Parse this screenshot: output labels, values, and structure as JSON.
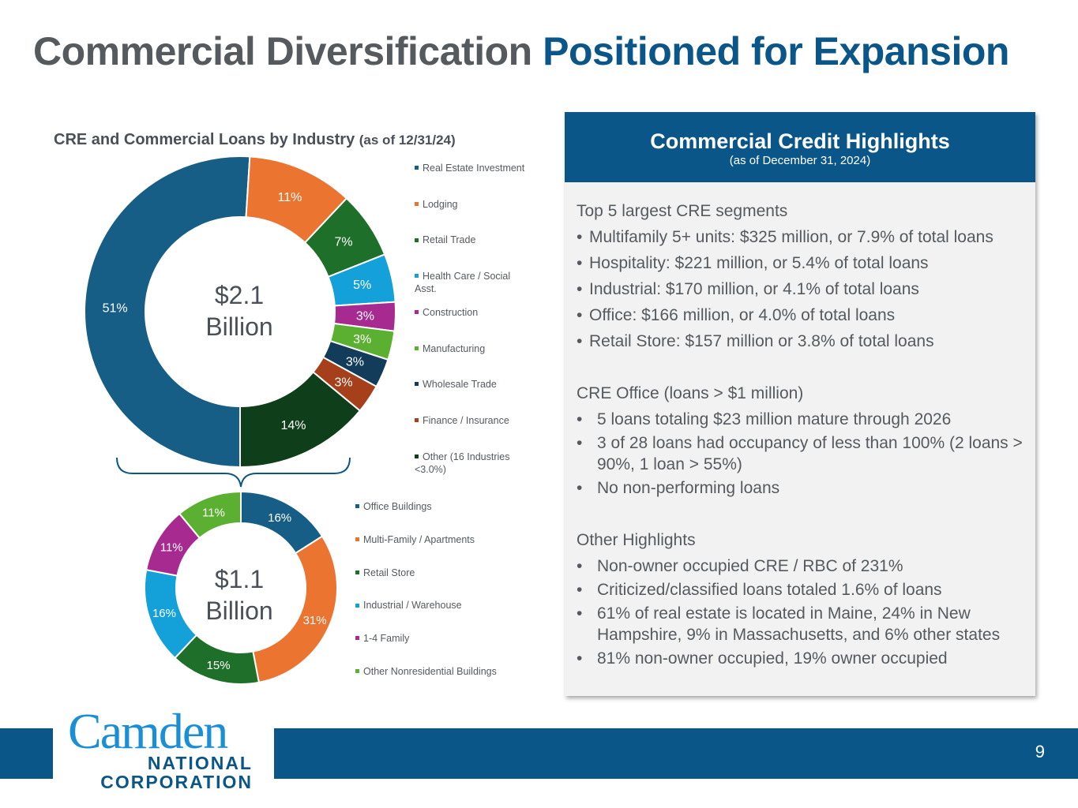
{
  "title": {
    "part1": "Commercial Diversification",
    "part2": "Positioned for Expansion"
  },
  "chart_data": [
    {
      "type": "pie",
      "title": "CRE and Commercial Loans by Industry",
      "subtitle": "(as of 12/31/24)",
      "center_label": [
        "$2.1",
        "Billion"
      ],
      "categories": [
        "Real Estate Investment",
        "Lodging",
        "Retail Trade",
        "Health Care / Social Asst.",
        "Construction",
        "Manufacturing",
        "Wholesale Trade",
        "Finance / Insurance",
        "Other (16 Industries <3.0%)"
      ],
      "values": [
        51,
        11,
        7,
        5,
        3,
        3,
        3,
        3,
        14
      ],
      "labels": [
        "51%",
        "11%",
        "7%",
        "5%",
        "3%",
        "3%",
        "3%",
        "3%",
        "14%"
      ],
      "colors": [
        "#165e85",
        "#ea7430",
        "#1e6f2a",
        "#14a1da",
        "#a62a8f",
        "#5bb032",
        "#123c5a",
        "#a5401a",
        "#0f3f1a"
      ],
      "legend_position": "right"
    },
    {
      "type": "pie",
      "center_label": [
        "$1.1",
        "Billion"
      ],
      "categories": [
        "Office Buildings",
        "Multi-Family / Apartments",
        "Retail Store",
        "Industrial / Warehouse",
        "1-4 Family",
        "Other Nonresidential Buildings"
      ],
      "values": [
        16,
        31,
        15,
        16,
        11,
        11
      ],
      "labels": [
        "16%",
        "31%",
        "15%",
        "16%",
        "11%",
        "11%"
      ],
      "colors": [
        "#165e85",
        "#ea7430",
        "#1e6f2a",
        "#14a1da",
        "#a62a8f",
        "#5bb032"
      ],
      "legend_position": "right"
    }
  ],
  "card": {
    "title": "Commercial Credit Highlights",
    "subtitle": "(as of December 31, 2024)",
    "sections": [
      {
        "heading": "Top 5 largest CRE segments",
        "bullets": [
          "Multifamily 5+ units: $325 million, or 7.9% of total loans",
          "Hospitality: $221 million, or 5.4% of total loans",
          "Industrial: $170 million, or 4.1% of total loans",
          "Office: $166 million, or 4.0% of total loans",
          "Retail Store: $157 million or 3.8% of total loans"
        ]
      },
      {
        "heading": "CRE Office (loans > $1 million)",
        "bullets": [
          "5 loans totaling $23 million mature through 2026",
          "3 of 28 loans had occupancy of less than 100% (2 loans > 90%, 1 loan > 55%)",
          "No non-performing loans"
        ]
      },
      {
        "heading": "Other Highlights",
        "bullets": [
          "Non-owner occupied CRE / RBC of 231%",
          "Criticized/classified loans totaled 1.6% of loans",
          "61% of real estate is located in Maine, 24% in New Hampshire, 9% in Massachusetts, and 6% other states",
          "81% non-owner occupied, 19% owner occupied"
        ]
      }
    ]
  },
  "logo": {
    "name": "Camden",
    "line1": "NATIONAL",
    "line2": "CORPORATION"
  },
  "page_number": "9",
  "bullet_char": "•"
}
